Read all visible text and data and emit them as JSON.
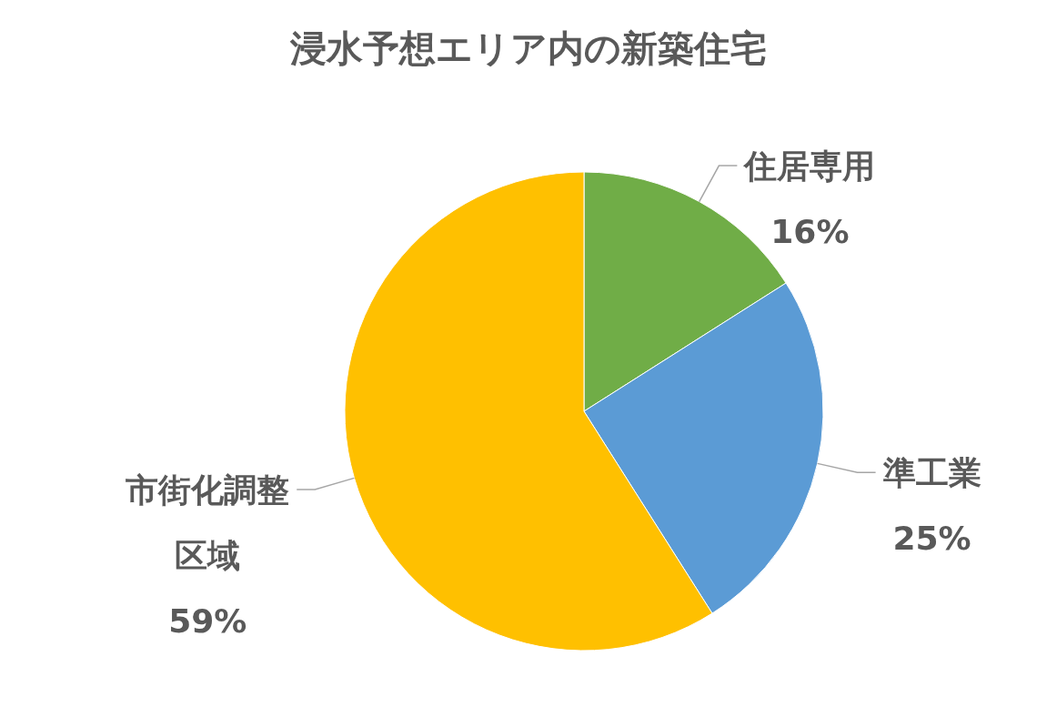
{
  "chart_data": {
    "type": "pie",
    "title": "浸水予想エリア内の新築住宅",
    "categories": [
      "住居専用",
      "準工業",
      "市街化調整区域"
    ],
    "values": [
      16,
      25,
      59
    ],
    "colors": [
      "#70ad47",
      "#5b9bd5",
      "#ffc000"
    ],
    "value_labels": [
      "16%",
      "25%",
      "59%"
    ]
  }
}
